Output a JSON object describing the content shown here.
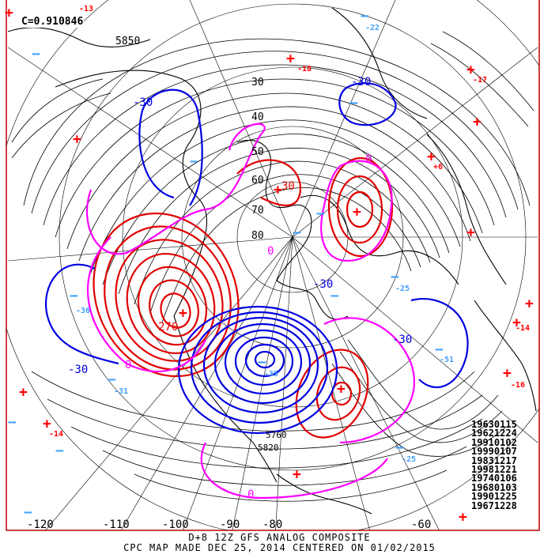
{
  "correlation": "C=0.910846",
  "caption_line1": "D+8 12Z GFS ANALOG COMPOSITE",
  "caption_line2": "CPC MAP MADE DEC 25, 2014 CENTERED ON 01/02/2015",
  "analog_dates": [
    "19630115",
    "19621224",
    "19910102",
    "19990107",
    "19831217",
    "19981221",
    "19740106",
    "19680103",
    "19901225",
    "19671228"
  ],
  "longitude_labels": [
    "-120",
    "-110",
    "-100",
    "-90",
    "-80",
    "-60"
  ],
  "latitude_labels": [
    "30",
    "40",
    "50",
    "60",
    "70",
    "80"
  ],
  "height_contour_labels": [
    "5850",
    "5760",
    "5820"
  ],
  "anomaly_labels": [
    "-30",
    "-30",
    "-30",
    "-30",
    "-30",
    "0",
    "0",
    "0",
    "0",
    "30",
    "270"
  ],
  "plus_markers": [
    "-13",
    "-18",
    "-17",
    "+6",
    "-14",
    "-16",
    "-14"
  ],
  "minus_markers": [
    "-22",
    "-25",
    "-35",
    "-51",
    "-36",
    "-31",
    "-25"
  ],
  "colors": {
    "positive_anomaly": "#e00000",
    "negative_anomaly": "#0000e0",
    "zero_anomaly": "#ff00ff",
    "height_contour": "#000000",
    "plus_marker": "#ff0000",
    "minus_marker": "#40a0ff",
    "frame": "#c00000"
  }
}
